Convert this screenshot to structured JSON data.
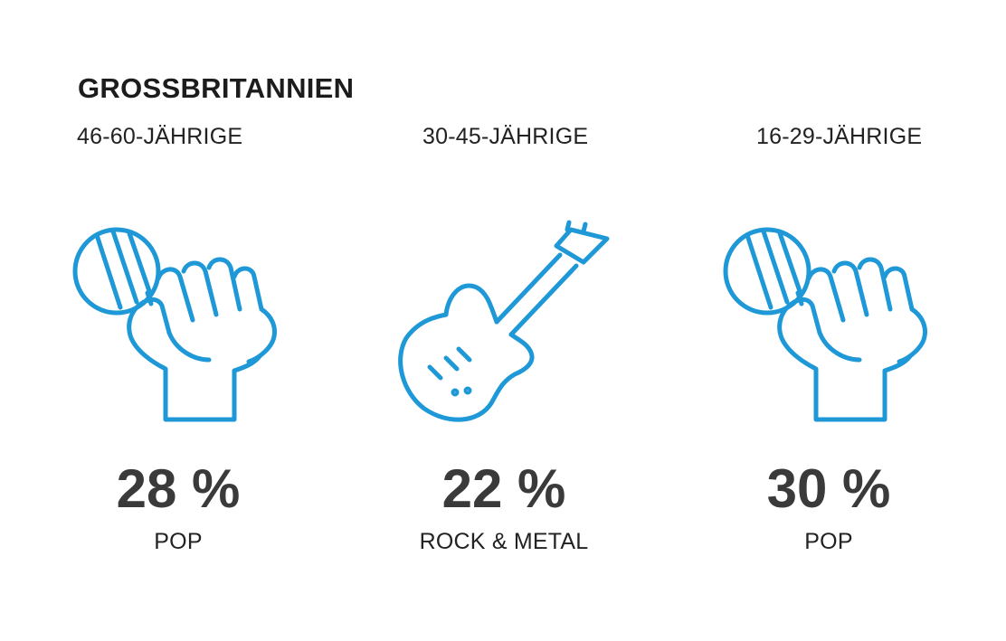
{
  "title": "GROSSBRITANNIEN",
  "accent_color": "#1e98d7",
  "groups": [
    {
      "age": "46-60-JÄHRIGE",
      "percent": "28 %",
      "genre": "POP",
      "icon": "microphone-hand-icon"
    },
    {
      "age": "30-45-JÄHRIGE",
      "percent": "22 %",
      "genre": "ROCK & METAL",
      "icon": "electric-guitar-icon"
    },
    {
      "age": "16-29-JÄHRIGE",
      "percent": "30 %",
      "genre": "POP",
      "icon": "microphone-hand-icon"
    }
  ]
}
